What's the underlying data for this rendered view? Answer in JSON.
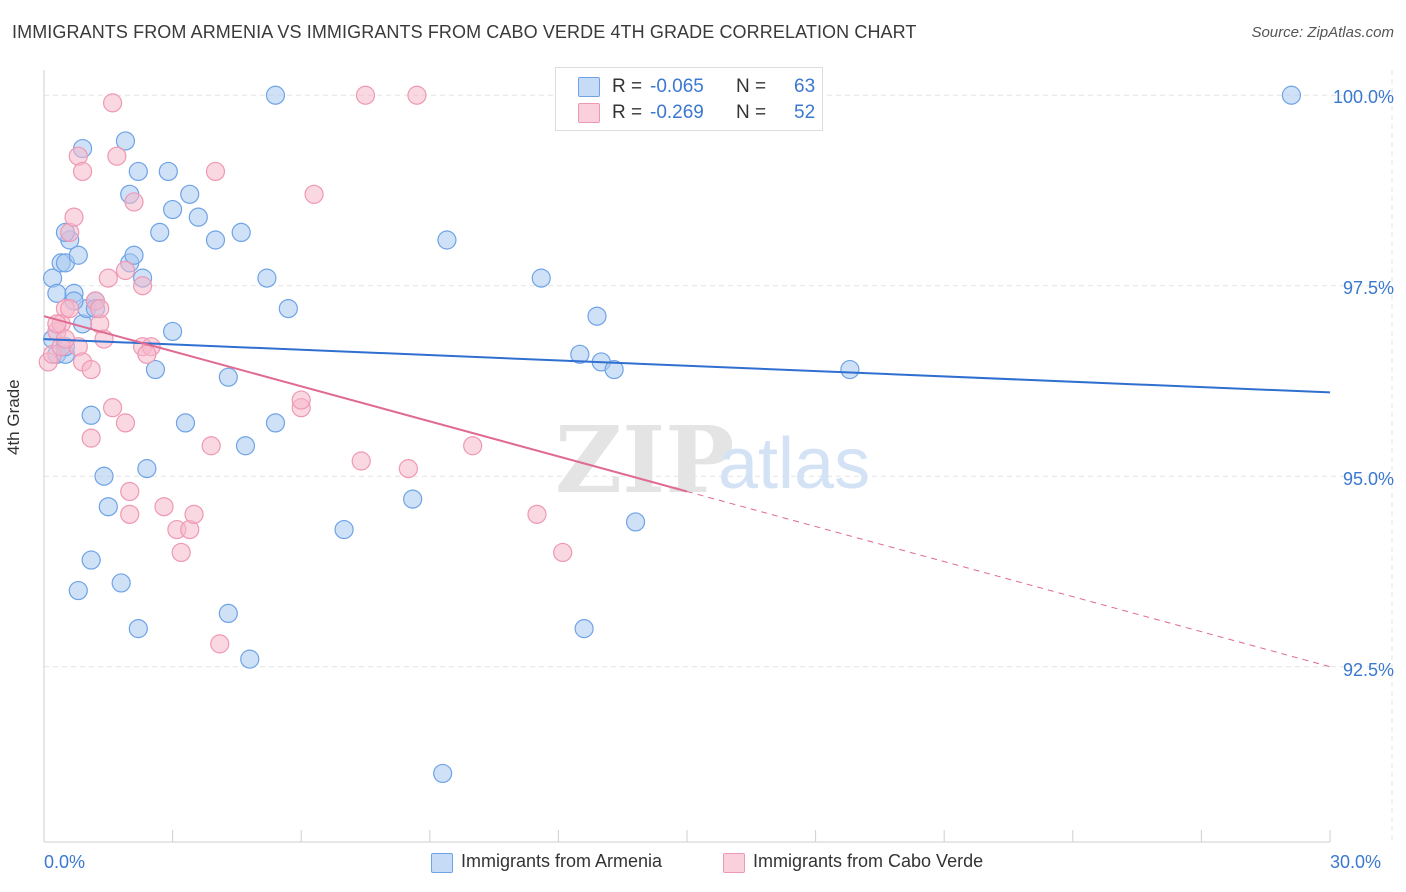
{
  "header": {
    "title": "IMMIGRANTS FROM ARMENIA VS IMMIGRANTS FROM CABO VERDE 4TH GRADE CORRELATION CHART",
    "source": "Source: ZipAtlas.com"
  },
  "watermark": {
    "zip": "ZIP",
    "atlas": "atlas"
  },
  "legend_top": {
    "rows": [
      {
        "r_label": "R =",
        "r_value": "-0.065",
        "n_label": "N =",
        "n_value": "63",
        "color": "#a8c8f0"
      },
      {
        "r_label": "R =",
        "r_value": "-0.269",
        "n_label": "N =",
        "n_value": "52",
        "color": "#f5b8cb"
      }
    ]
  },
  "chart_data": {
    "type": "scatter",
    "title": "IMMIGRANTS FROM ARMENIA VS IMMIGRANTS FROM CABO VERDE 4TH GRADE CORRELATION CHART",
    "xlabel": "",
    "ylabel": "4th Grade",
    "xlim": [
      0,
      30
    ],
    "ylim": [
      90.2,
      100.2
    ],
    "x_tick_labels": [
      "0.0%",
      "30.0%"
    ],
    "y_ticks": [
      92.5,
      95.0,
      97.5,
      100.0
    ],
    "y_tick_labels": [
      "92.5%",
      "95.0%",
      "97.5%",
      "100.0%"
    ],
    "grid": true,
    "legend_position": "bottom",
    "series": [
      {
        "name": "Immigrants from Armenia",
        "color": "#6fa3e6",
        "fill": "#a8c8f0",
        "line_color": "#2f6fd0",
        "trend": {
          "x": [
            0,
            30
          ],
          "y": [
            96.8,
            96.1
          ],
          "dashed_from": null
        },
        "points": [
          [
            0.2,
            97.6
          ],
          [
            0.3,
            97.4
          ],
          [
            0.4,
            97.8
          ],
          [
            0.5,
            97.8
          ],
          [
            0.6,
            98.1
          ],
          [
            0.7,
            97.4
          ],
          [
            0.8,
            97.9
          ],
          [
            0.9,
            97.0
          ],
          [
            0.2,
            96.8
          ],
          [
            0.3,
            96.6
          ],
          [
            0.5,
            96.6
          ],
          [
            1.0,
            97.2
          ],
          [
            1.2,
            97.3
          ],
          [
            0.7,
            97.3
          ],
          [
            0.5,
            96.7
          ],
          [
            0.9,
            99.3
          ],
          [
            1.9,
            99.4
          ],
          [
            2.0,
            98.7
          ],
          [
            2.0,
            97.8
          ],
          [
            2.1,
            97.9
          ],
          [
            2.2,
            99.0
          ],
          [
            2.3,
            97.6
          ],
          [
            3.0,
            98.5
          ],
          [
            2.7,
            98.2
          ],
          [
            2.9,
            99.0
          ],
          [
            3.4,
            98.7
          ],
          [
            3.6,
            98.4
          ],
          [
            4.0,
            98.1
          ],
          [
            4.6,
            98.2
          ],
          [
            5.2,
            97.6
          ],
          [
            5.7,
            97.2
          ],
          [
            2.6,
            96.4
          ],
          [
            4.3,
            96.3
          ],
          [
            1.1,
            95.8
          ],
          [
            3.3,
            95.7
          ],
          [
            5.4,
            95.7
          ],
          [
            4.7,
            95.4
          ],
          [
            2.4,
            95.1
          ],
          [
            1.4,
            95.0
          ],
          [
            1.5,
            94.6
          ],
          [
            7.0,
            94.3
          ],
          [
            8.6,
            94.7
          ],
          [
            1.1,
            93.9
          ],
          [
            0.8,
            93.5
          ],
          [
            1.8,
            93.6
          ],
          [
            2.2,
            93.0
          ],
          [
            4.3,
            93.2
          ],
          [
            4.8,
            92.6
          ],
          [
            9.3,
            91.1
          ],
          [
            12.6,
            93.0
          ],
          [
            13.8,
            94.4
          ],
          [
            9.4,
            98.1
          ],
          [
            11.6,
            97.6
          ],
          [
            12.5,
            96.6
          ],
          [
            13.0,
            96.5
          ],
          [
            13.3,
            96.4
          ],
          [
            12.9,
            97.1
          ],
          [
            18.8,
            96.4
          ],
          [
            5.4,
            100.0
          ],
          [
            29.1,
            100.0
          ],
          [
            1.2,
            97.2
          ],
          [
            0.5,
            98.2
          ],
          [
            3.0,
            96.9
          ]
        ]
      },
      {
        "name": "Immigrants from Cabo Verde",
        "color": "#ef98b3",
        "fill": "#f5b8cb",
        "line_color": "#e06a92",
        "trend": {
          "x": [
            0,
            30
          ],
          "y": [
            97.1,
            92.5
          ],
          "dashed_from": 15
        },
        "points": [
          [
            0.1,
            96.5
          ],
          [
            0.2,
            96.6
          ],
          [
            0.3,
            96.9
          ],
          [
            0.4,
            96.7
          ],
          [
            0.5,
            97.2
          ],
          [
            0.6,
            98.2
          ],
          [
            0.7,
            98.4
          ],
          [
            0.8,
            96.7
          ],
          [
            0.9,
            96.5
          ],
          [
            0.4,
            97.0
          ],
          [
            0.5,
            96.8
          ],
          [
            1.2,
            97.3
          ],
          [
            1.3,
            97.0
          ],
          [
            1.1,
            96.4
          ],
          [
            1.4,
            96.8
          ],
          [
            1.3,
            97.2
          ],
          [
            1.5,
            97.6
          ],
          [
            1.9,
            97.7
          ],
          [
            2.3,
            97.5
          ],
          [
            2.3,
            96.7
          ],
          [
            2.5,
            96.7
          ],
          [
            1.6,
            95.9
          ],
          [
            1.9,
            95.7
          ],
          [
            1.1,
            95.5
          ],
          [
            2.0,
            94.8
          ],
          [
            2.0,
            94.5
          ],
          [
            2.8,
            94.6
          ],
          [
            3.1,
            94.3
          ],
          [
            3.2,
            94.0
          ],
          [
            3.4,
            94.3
          ],
          [
            3.5,
            94.5
          ],
          [
            3.9,
            95.4
          ],
          [
            4.1,
            92.8
          ],
          [
            0.8,
            99.2
          ],
          [
            0.9,
            99.0
          ],
          [
            1.6,
            99.9
          ],
          [
            1.7,
            99.2
          ],
          [
            2.1,
            98.6
          ],
          [
            4.0,
            99.0
          ],
          [
            6.3,
            98.7
          ],
          [
            6.0,
            95.9
          ],
          [
            6.0,
            96.0
          ],
          [
            7.4,
            95.2
          ],
          [
            8.5,
            95.1
          ],
          [
            10.0,
            95.4
          ],
          [
            11.5,
            94.5
          ],
          [
            12.1,
            94.0
          ],
          [
            7.5,
            100.0
          ],
          [
            8.7,
            100.0
          ],
          [
            0.3,
            97.0
          ],
          [
            2.4,
            96.6
          ],
          [
            0.6,
            97.2
          ]
        ]
      }
    ]
  },
  "legend_bottom": {
    "items": [
      {
        "label": "Immigrants from Armenia",
        "color": "#a8c8f0"
      },
      {
        "label": "Immigrants from Cabo Verde",
        "color": "#f5b8cb"
      }
    ]
  }
}
